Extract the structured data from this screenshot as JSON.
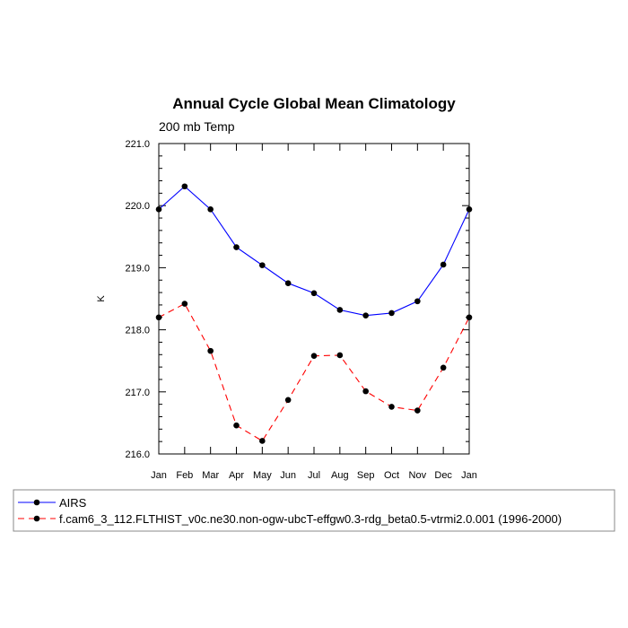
{
  "chart_data": {
    "type": "line",
    "title": "Annual Cycle Global Mean Climatology",
    "subtitle": "200 mb Temp",
    "xlabel": "",
    "ylabel": "K",
    "categories": [
      "Jan",
      "Feb",
      "Mar",
      "Apr",
      "May",
      "Jun",
      "Jul",
      "Aug",
      "Sep",
      "Oct",
      "Nov",
      "Dec",
      "Jan"
    ],
    "ylim": [
      216.0,
      221.0
    ],
    "yticks": [
      216.0,
      217.0,
      218.0,
      219.0,
      220.0,
      221.0
    ],
    "ytick_labels": [
      "216.0",
      "217.0",
      "218.0",
      "219.0",
      "220.0",
      "221.0"
    ],
    "grid": false,
    "legend_position": "bottom",
    "series": [
      {
        "name": "AIRS",
        "color": "#0000ff",
        "dash": "solid",
        "values": [
          219.94,
          220.31,
          219.94,
          219.33,
          219.04,
          218.75,
          218.59,
          218.32,
          218.23,
          218.27,
          218.46,
          219.05,
          219.94
        ]
      },
      {
        "name": "f.cam6_3_112.FLTHIST_v0c.ne30.non-ogw-ubcT-effgw0.3-rdg_beta0.5-vtrmi2.0.001 (1996-2000)",
        "color": "#ff0000",
        "dash": "dashed",
        "values": [
          218.2,
          218.42,
          217.66,
          216.46,
          216.21,
          216.87,
          217.58,
          217.59,
          217.01,
          216.76,
          216.7,
          217.39,
          218.2
        ]
      }
    ]
  }
}
